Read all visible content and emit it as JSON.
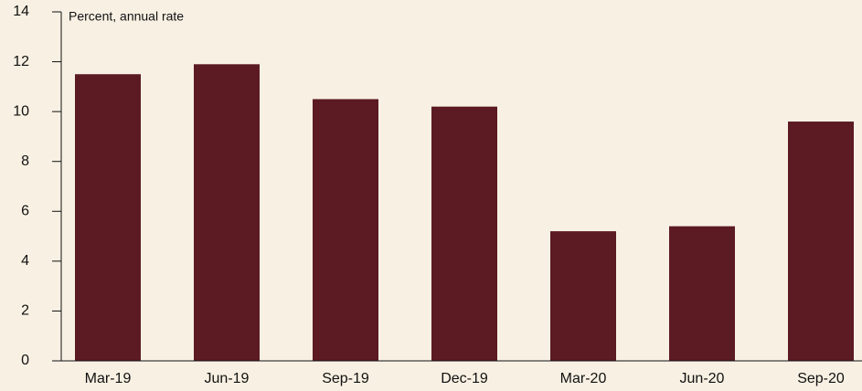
{
  "chart_data": {
    "type": "bar",
    "y_label": "Percent, annual rate",
    "categories": [
      "Mar-19",
      "Jun-19",
      "Sep-19",
      "Dec-19",
      "Mar-20",
      "Jun-20",
      "Sep-20"
    ],
    "values": [
      11.5,
      11.9,
      10.5,
      10.2,
      5.2,
      5.4,
      9.6
    ],
    "color": "#5c1a22",
    "ylim": [
      0,
      14
    ],
    "yticks": [
      0,
      2,
      4,
      6,
      8,
      10,
      12,
      14
    ],
    "grid": false
  }
}
